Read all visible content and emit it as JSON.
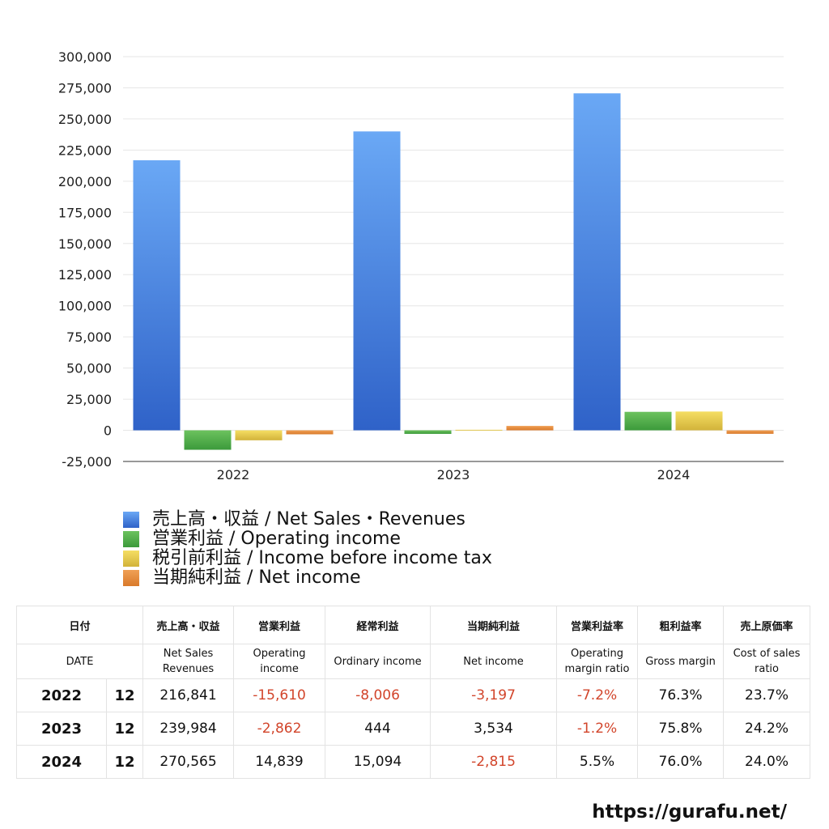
{
  "chart_data": {
    "type": "bar",
    "categories": [
      "2022",
      "2023",
      "2024"
    ],
    "series": [
      {
        "name": "売上高・収益 / Net Sales・Revenues",
        "values": [
          216841,
          239984,
          270565
        ],
        "color_top": "#6aa8f5",
        "color_bottom": "#2f62c8"
      },
      {
        "name": "営業利益 / Operating income",
        "values": [
          -15610,
          -2862,
          14839
        ],
        "color_top": "#6cc25e",
        "color_bottom": "#3c9a3b"
      },
      {
        "name": "税引前利益 / Income before income tax",
        "values": [
          -8006,
          444,
          15094
        ],
        "color_top": "#f5de63",
        "color_bottom": "#d2b33a"
      },
      {
        "name": "当期純利益 / Net income",
        "values": [
          -3197,
          3534,
          -2815
        ],
        "color_top": "#f0a055",
        "color_bottom": "#d97a2b"
      }
    ],
    "ylim": [
      -25000,
      300000
    ],
    "yticks": [
      -25000,
      0,
      25000,
      50000,
      75000,
      100000,
      125000,
      150000,
      175000,
      200000,
      225000,
      250000,
      275000,
      300000
    ],
    "grid": true,
    "legend_position": "bottom-left",
    "title": "",
    "xlabel": "",
    "ylabel": ""
  },
  "table": {
    "headers_ja": [
      "日付",
      "売上高・収益",
      "営業利益",
      "経常利益",
      "当期純利益",
      "営業利益率",
      "粗利益率",
      "売上原価率"
    ],
    "headers_en": [
      "DATE",
      "Net Sales Revenues",
      "Operating income",
      "Ordinary income",
      "Net income",
      "Operating margin ratio",
      "Gross margin",
      "Cost of sales ratio"
    ],
    "rows": [
      {
        "year": "2022",
        "month": "12",
        "values": [
          "216,841",
          "-15,610",
          "-8,006",
          "-3,197",
          "-7.2%",
          "76.3%",
          "23.7%"
        ]
      },
      {
        "year": "2023",
        "month": "12",
        "values": [
          "239,984",
          "-2,862",
          "444",
          "3,534",
          "-1.2%",
          "75.8%",
          "24.2%"
        ]
      },
      {
        "year": "2024",
        "month": "12",
        "values": [
          "270,565",
          "14,839",
          "15,094",
          "-2,815",
          "5.5%",
          "76.0%",
          "24.0%"
        ]
      }
    ]
  },
  "footer": {
    "url": "https://gurafu.net/"
  }
}
